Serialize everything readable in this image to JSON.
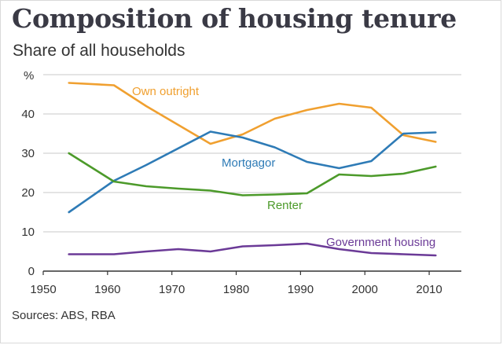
{
  "chart_data": {
    "type": "line",
    "title": "Composition of housing tenure",
    "subtitle": "Share of all households",
    "ylabel": "%",
    "xlabel": "",
    "source": "Sources: ABS, RBA",
    "xlim": [
      1950,
      2015
    ],
    "ylim": [
      0,
      50
    ],
    "x_ticks": [
      1950,
      1960,
      1970,
      1980,
      1990,
      2000,
      2010
    ],
    "y_ticks": [
      0,
      10,
      20,
      30,
      40
    ],
    "grid": true,
    "legend": "inline labels",
    "series": [
      {
        "name": "Own outright",
        "color": "#f0a030",
        "x": [
          1954,
          1961,
          1966,
          1976,
          1981,
          1986,
          1991,
          1996,
          2001,
          2006,
          2011
        ],
        "values": [
          47.9,
          47.3,
          42.0,
          32.4,
          34.8,
          38.8,
          41.0,
          42.6,
          41.6,
          34.6,
          32.9
        ]
      },
      {
        "name": "Mortgagor",
        "color": "#2e7bb6",
        "x": [
          1954,
          1961,
          1966,
          1976,
          1981,
          1986,
          1991,
          1996,
          2001,
          2006,
          2011
        ],
        "values": [
          15.0,
          23.0,
          27.0,
          35.5,
          34.0,
          31.5,
          27.8,
          26.2,
          28.0,
          35.0,
          35.3
        ]
      },
      {
        "name": "Renter",
        "color": "#4c9a2a",
        "x": [
          1954,
          1961,
          1966,
          1971,
          1976,
          1981,
          1986,
          1991,
          1996,
          2001,
          2006,
          2011
        ],
        "values": [
          30.0,
          22.8,
          21.6,
          21.0,
          20.5,
          19.3,
          19.5,
          19.8,
          24.6,
          24.2,
          24.8,
          26.6
        ]
      },
      {
        "name": "Government housing",
        "color": "#6b3a97",
        "x": [
          1954,
          1961,
          1966,
          1971,
          1976,
          1981,
          1986,
          1991,
          1996,
          2001,
          2006,
          2011
        ],
        "values": [
          4.3,
          4.3,
          5.0,
          5.6,
          5.0,
          6.3,
          6.6,
          7.0,
          5.6,
          4.6,
          4.3,
          4.0
        ]
      }
    ]
  }
}
